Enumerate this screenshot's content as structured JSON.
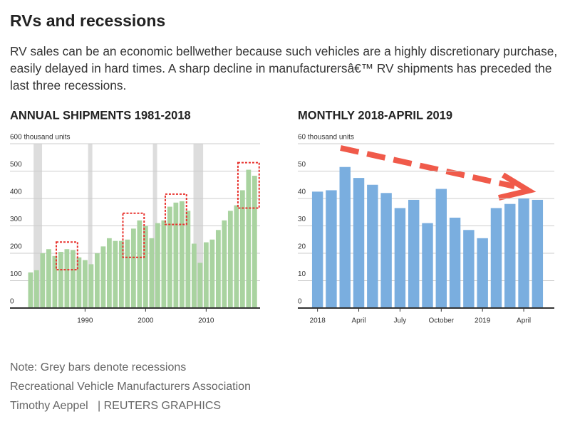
{
  "header": {
    "title": "RVs and recessions",
    "subtitle": "RV sales can be an economic bellwether because such vehicles are a highly discretionary purchase, easily delayed in hard times. A sharp decline in manufacturersâ€™ RV shipments has preceded the last three recessions."
  },
  "chart_data": [
    {
      "type": "bar",
      "title": "ANNUAL SHIPMENTS 1981-2018",
      "color": "#a9d3a0",
      "recession_color": "#dddddd",
      "highlight_color": "#e8322d",
      "x": [
        1981,
        1982,
        1983,
        1984,
        1985,
        1986,
        1987,
        1988,
        1989,
        1990,
        1991,
        1992,
        1993,
        1994,
        1995,
        1996,
        1997,
        1998,
        1999,
        2000,
        2001,
        2002,
        2003,
        2004,
        2005,
        2006,
        2007,
        2008,
        2009,
        2010,
        2011,
        2012,
        2013,
        2014,
        2015,
        2016,
        2017,
        2018
      ],
      "values": [
        130,
        138,
        200,
        215,
        190,
        205,
        215,
        212,
        185,
        175,
        160,
        200,
        225,
        255,
        245,
        245,
        250,
        290,
        320,
        300,
        255,
        310,
        320,
        370,
        385,
        390,
        355,
        235,
        165,
        240,
        250,
        285,
        320,
        355,
        375,
        430,
        505,
        483
      ],
      "recessions": [
        [
          1981.5,
          1982.9
        ],
        [
          1990.5,
          1991.2
        ],
        [
          2001.2,
          2001.9
        ],
        [
          2007.9,
          2009.5
        ]
      ],
      "highlights": [
        [
          1986,
          1988
        ],
        [
          1997,
          1999
        ],
        [
          2004,
          2006
        ],
        [
          2016,
          2018
        ]
      ],
      "xlim": [
        1977.6,
        2018.9
      ],
      "xticks": [
        1990,
        2000,
        2010
      ],
      "ylim": [
        0,
        600
      ],
      "yticks": [
        0,
        100,
        200,
        300,
        400,
        500,
        {
          "value": 600,
          "label": "600 thousand units"
        }
      ],
      "grid": true
    },
    {
      "type": "bar",
      "title": "MONTHLY 2018-APRIL 2019",
      "color": "#7aaedf",
      "categories": [
        "2018",
        null,
        null,
        "April",
        null,
        null,
        "July",
        null,
        null,
        "October",
        null,
        null,
        "2019",
        null,
        null,
        "April",
        null
      ],
      "values": [
        42.5,
        43,
        51.5,
        47.5,
        45,
        42,
        36.5,
        39.5,
        31,
        43.5,
        33,
        28.5,
        25.5,
        36.5,
        38,
        40,
        39.5
      ],
      "ylim": [
        0,
        60
      ],
      "yticks": [
        0,
        10,
        20,
        30,
        40,
        {
          "value": 60,
          "label": "60 thousand units"
        },
        50
      ],
      "grid": true
    }
  ],
  "notes": [
    "Note: Grey bars denote recessions",
    "Recreational Vehicle Manufacturers Association",
    "Timothy Aeppel   | REUTERS GRAPHICS"
  ]
}
